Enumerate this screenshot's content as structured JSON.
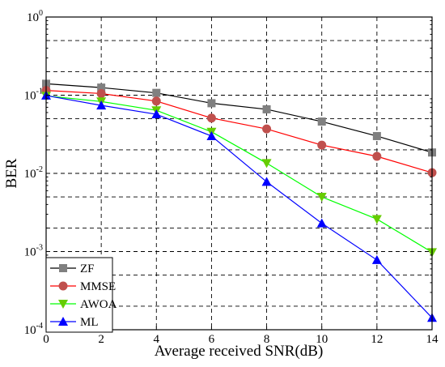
{
  "chart_data": {
    "type": "line",
    "xlabel": "Average received SNR(dB)",
    "ylabel": "BER",
    "y_scale": "log",
    "xlim": [
      0,
      14
    ],
    "ylim": [
      0.0001,
      1
    ],
    "x_ticks": [
      "0",
      "2",
      "4",
      "6",
      "8",
      "10",
      "12",
      "14"
    ],
    "y_ticks": [
      {
        "base": "10",
        "exp": "0"
      },
      {
        "base": "10",
        "exp": "-1"
      },
      {
        "base": "10",
        "exp": "-2"
      },
      {
        "base": "10",
        "exp": "-3"
      },
      {
        "base": "10",
        "exp": "-4"
      }
    ],
    "grid": true,
    "legend_position": "bottom-left",
    "x": [
      0,
      2,
      4,
      6,
      8,
      10,
      12,
      14
    ],
    "series": [
      {
        "name": "ZF",
        "color": "#000000",
        "marker_color": "#808080",
        "marker": "square",
        "values": [
          0.14,
          0.125,
          0.107,
          0.079,
          0.066,
          0.046,
          0.03,
          0.0185
        ]
      },
      {
        "name": "MMSE",
        "color": "#ff0000",
        "marker_color": "#c0504d",
        "marker": "circle",
        "values": [
          0.115,
          0.105,
          0.084,
          0.051,
          0.037,
          0.023,
          0.0165,
          0.0102
        ]
      },
      {
        "name": "AWOA",
        "color": "#00ff00",
        "marker_color": "#66cc00",
        "marker": "triangle-down",
        "values": [
          0.098,
          0.083,
          0.064,
          0.034,
          0.0135,
          0.005,
          0.0026,
          0.00098
        ]
      },
      {
        "name": "ML",
        "color": "#0000ff",
        "marker_color": "#0000ff",
        "marker": "triangle-up",
        "values": [
          0.099,
          0.074,
          0.057,
          0.03,
          0.0078,
          0.0023,
          0.00078,
          0.000142
        ]
      }
    ]
  }
}
